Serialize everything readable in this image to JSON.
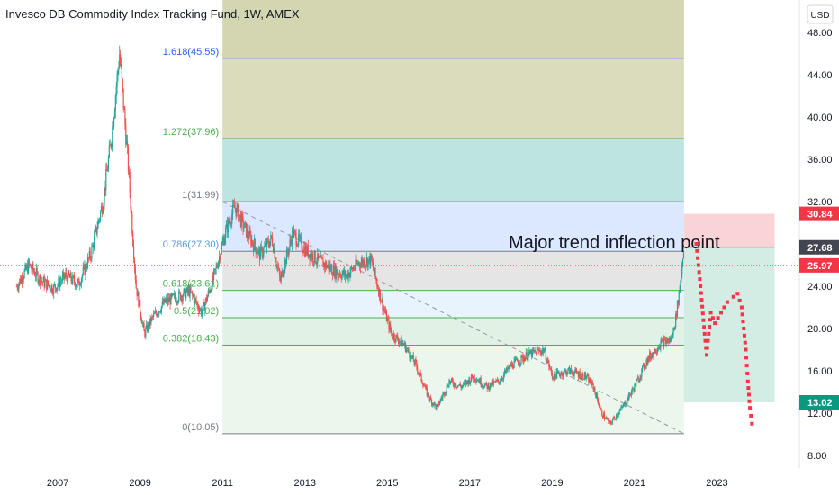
{
  "header": {
    "title": "Invesco DB Commodity Index Tracking Fund, 1W, AMEX"
  },
  "axis": {
    "currency": "USD"
  },
  "chart_data": {
    "type": "candlestick",
    "title": "Invesco DB Commodity Index Tracking Fund, 1W, AMEX",
    "ylim": [
      6.5,
      50
    ],
    "xlim": [
      2005.6,
      2025.0
    ],
    "y_ticks": [
      "8.00",
      "12.00",
      "16.00",
      "20.00",
      "24.00",
      "28.00",
      "32.00",
      "36.00",
      "40.00",
      "44.00",
      "48.00"
    ],
    "y_tick_values": [
      8,
      12,
      16,
      20,
      24,
      28,
      32,
      36,
      40,
      44,
      48
    ],
    "x_ticks": [
      "2007",
      "2009",
      "2011",
      "2013",
      "2015",
      "2017",
      "2019",
      "2021",
      "2023"
    ],
    "x_tick_values": [
      2007,
      2009,
      2011,
      2013,
      2015,
      2017,
      2019,
      2021,
      2023
    ],
    "price_path": [
      [
        2006.0,
        24.0
      ],
      [
        2006.3,
        26.0
      ],
      [
        2006.6,
        24.5
      ],
      [
        2006.9,
        23.8
      ],
      [
        2007.2,
        25.0
      ],
      [
        2007.5,
        24.2
      ],
      [
        2007.8,
        27.0
      ],
      [
        2008.1,
        32.0
      ],
      [
        2008.3,
        38.0
      ],
      [
        2008.5,
        46.0
      ],
      [
        2008.7,
        36.0
      ],
      [
        2008.9,
        24.0
      ],
      [
        2009.1,
        19.5
      ],
      [
        2009.3,
        21.0
      ],
      [
        2009.6,
        22.5
      ],
      [
        2009.9,
        23.0
      ],
      [
        2010.2,
        23.5
      ],
      [
        2010.5,
        21.5
      ],
      [
        2010.8,
        25.0
      ],
      [
        2011.1,
        29.5
      ],
      [
        2011.3,
        31.5
      ],
      [
        2011.6,
        29.0
      ],
      [
        2011.9,
        27.0
      ],
      [
        2012.2,
        28.5
      ],
      [
        2012.4,
        24.5
      ],
      [
        2012.7,
        29.0
      ],
      [
        2013.0,
        27.5
      ],
      [
        2013.3,
        26.5
      ],
      [
        2013.7,
        25.5
      ],
      [
        2014.0,
        25.0
      ],
      [
        2014.3,
        26.2
      ],
      [
        2014.6,
        26.5
      ],
      [
        2014.9,
        22.0
      ],
      [
        2015.1,
        19.5
      ],
      [
        2015.4,
        18.5
      ],
      [
        2015.7,
        16.5
      ],
      [
        2016.0,
        13.5
      ],
      [
        2016.2,
        12.5
      ],
      [
        2016.5,
        15.0
      ],
      [
        2016.8,
        14.5
      ],
      [
        2017.1,
        15.5
      ],
      [
        2017.4,
        14.5
      ],
      [
        2017.7,
        15.0
      ],
      [
        2018.0,
        16.5
      ],
      [
        2018.4,
        17.5
      ],
      [
        2018.8,
        18.0
      ],
      [
        2019.0,
        15.5
      ],
      [
        2019.4,
        16.0
      ],
      [
        2019.8,
        15.5
      ],
      [
        2020.0,
        14.5
      ],
      [
        2020.2,
        12.0
      ],
      [
        2020.4,
        11.0
      ],
      [
        2020.7,
        12.5
      ],
      [
        2021.0,
        14.5
      ],
      [
        2021.3,
        17.0
      ],
      [
        2021.6,
        18.5
      ],
      [
        2021.9,
        19.0
      ],
      [
        2022.0,
        21.0
      ],
      [
        2022.1,
        24.0
      ],
      [
        2022.2,
        28.0
      ]
    ],
    "last_price": 25.97,
    "fibonacci": {
      "levels": [
        {
          "ratio": 0,
          "price": 10.05,
          "label": "0(10.05)"
        },
        {
          "ratio": 0.382,
          "price": 18.43,
          "label": "0.382(18.43)"
        },
        {
          "ratio": 0.5,
          "price": 21.02,
          "label": "0.5(21.02)"
        },
        {
          "ratio": 0.618,
          "price": 23.61,
          "label": "0.618(23.61)"
        },
        {
          "ratio": 0.786,
          "price": 27.3,
          "label": "0.786(27.30)"
        },
        {
          "ratio": 1,
          "price": 31.99,
          "label": "1(31.99)"
        },
        {
          "ratio": 1.272,
          "price": 37.96,
          "label": "1.272(37.96)"
        },
        {
          "ratio": 1.618,
          "price": 45.55,
          "label": "1.618(45.55)"
        }
      ],
      "x_start": 2011.0,
      "x_end": 2022.2
    },
    "trendline": {
      "from": [
        2011.0,
        31.99
      ],
      "to": [
        2022.2,
        10.05
      ]
    },
    "annotation": "Major trend inflection point",
    "forecast_path": [
      [
        2022.5,
        28.0
      ],
      [
        2022.6,
        24.0
      ],
      [
        2022.7,
        19.5
      ],
      [
        2022.75,
        17.5
      ],
      [
        2022.85,
        21.5
      ],
      [
        2022.95,
        20.5
      ],
      [
        2023.1,
        21.5
      ],
      [
        2023.25,
        22.5
      ],
      [
        2023.4,
        23.0
      ],
      [
        2023.5,
        23.3
      ],
      [
        2023.6,
        22.0
      ],
      [
        2023.7,
        18.0
      ],
      [
        2023.75,
        15.0
      ],
      [
        2023.8,
        12.5
      ],
      [
        2023.85,
        11.0
      ],
      [
        2024.0,
        11.2
      ]
    ],
    "position": {
      "x_start": 2022.2,
      "x_end": 2024.4,
      "stop": 30.84,
      "entry": 27.68,
      "target": 13.02
    },
    "price_labels": [
      {
        "value": 30.84,
        "text": "30.84",
        "color": "#f23645"
      },
      {
        "value": 27.68,
        "text": "27.68",
        "color": "#434651"
      },
      {
        "value": 25.97,
        "text": "25.97",
        "color": "#f23645"
      },
      {
        "value": 13.02,
        "text": "13.02",
        "color": "#089981"
      }
    ],
    "colors": {
      "up": "#26a69a",
      "down": "#ef5350",
      "forecast": "#f23645",
      "fib_line_blue": "#2962ff",
      "fib_line_green": "#4caf50",
      "fib_line_gray": "#787b86"
    }
  }
}
